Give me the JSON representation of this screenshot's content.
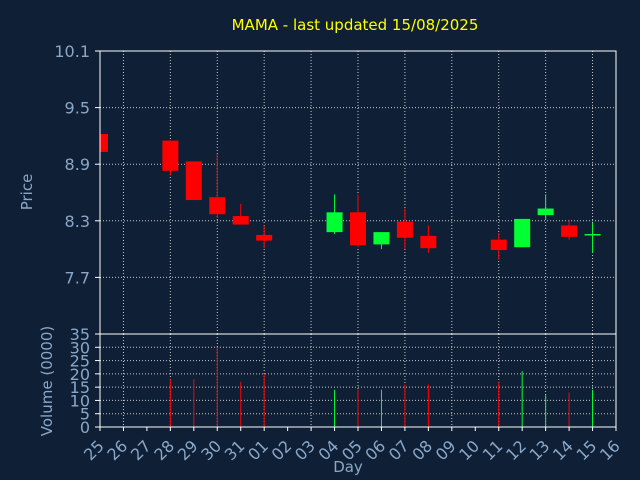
{
  "chart_data": {
    "type": "candlestick",
    "title": "MAMA - last updated 15/08/2025",
    "xlabel": "Day",
    "price_panel": {
      "ylabel": "Price",
      "ylim": [
        7.1,
        10.1
      ],
      "yticks": [
        "10.1",
        "9.5",
        "8.9",
        "8.3",
        "7.7"
      ],
      "grid": true
    },
    "volume_panel": {
      "ylabel": "Volume (0000)",
      "ylim": [
        0,
        35
      ],
      "yticks": [
        "35",
        "30",
        "25",
        "20",
        "15",
        "10",
        "5",
        "0"
      ],
      "grid": true
    },
    "categories": [
      "25",
      "26",
      "27",
      "28",
      "29",
      "30",
      "31",
      "01",
      "02",
      "03",
      "04",
      "05",
      "06",
      "07",
      "08",
      "09",
      "10",
      "11",
      "12",
      "13",
      "14",
      "15",
      "16"
    ],
    "candles": [
      {
        "day": "25",
        "open": 9.22,
        "close": 9.03,
        "high": 9.22,
        "low": 9.03,
        "direction": "down"
      },
      {
        "day": "28",
        "open": 9.15,
        "close": 8.83,
        "high": 9.15,
        "low": 8.78,
        "direction": "down"
      },
      {
        "day": "29",
        "open": 8.93,
        "close": 8.52,
        "high": 8.93,
        "low": 8.52,
        "direction": "down"
      },
      {
        "day": "30",
        "open": 8.55,
        "close": 8.37,
        "high": 9.01,
        "low": 8.33,
        "direction": "down"
      },
      {
        "day": "31",
        "open": 8.35,
        "close": 8.26,
        "high": 8.48,
        "low": 8.26,
        "direction": "down"
      },
      {
        "day": "01",
        "open": 8.15,
        "close": 8.09,
        "high": 8.25,
        "low": 8.01,
        "direction": "down"
      },
      {
        "day": "04",
        "open": 8.18,
        "close": 8.39,
        "high": 8.58,
        "low": 8.16,
        "direction": "up"
      },
      {
        "day": "05",
        "open": 8.39,
        "close": 8.04,
        "high": 8.58,
        "low": 8.02,
        "direction": "down"
      },
      {
        "day": "06",
        "open": 8.05,
        "close": 8.18,
        "high": 8.18,
        "low": 8.0,
        "direction": "up"
      },
      {
        "day": "07",
        "open": 8.29,
        "close": 8.12,
        "high": 8.43,
        "low": 8.0,
        "direction": "down"
      },
      {
        "day": "08",
        "open": 8.14,
        "close": 8.01,
        "high": 8.25,
        "low": 7.96,
        "direction": "down"
      },
      {
        "day": "11",
        "open": 8.1,
        "close": 7.99,
        "high": 8.17,
        "low": 7.89,
        "direction": "down"
      },
      {
        "day": "12",
        "open": 8.02,
        "close": 8.32,
        "high": 8.32,
        "low": 8.02,
        "direction": "up"
      },
      {
        "day": "13",
        "open": 8.36,
        "close": 8.43,
        "high": 8.58,
        "low": 8.31,
        "direction": "up"
      },
      {
        "day": "14",
        "open": 8.25,
        "close": 8.13,
        "high": 8.31,
        "low": 8.1,
        "direction": "down"
      },
      {
        "day": "15",
        "open": 8.16,
        "close": 8.16,
        "high": 8.28,
        "low": 7.96,
        "direction": "up"
      }
    ],
    "volume": [
      {
        "day": "28",
        "value": 18,
        "direction": "down"
      },
      {
        "day": "29",
        "value": 18,
        "direction": "down"
      },
      {
        "day": "30",
        "value": 30,
        "direction": "down"
      },
      {
        "day": "31",
        "value": 17,
        "direction": "down"
      },
      {
        "day": "01",
        "value": 20,
        "direction": "down"
      },
      {
        "day": "04",
        "value": 14,
        "direction": "up"
      },
      {
        "day": "05",
        "value": 14,
        "direction": "down"
      },
      {
        "day": "06",
        "value": 14,
        "direction": "up"
      },
      {
        "day": "07",
        "value": 16,
        "direction": "down"
      },
      {
        "day": "08",
        "value": 16,
        "direction": "down"
      },
      {
        "day": "11",
        "value": 17,
        "direction": "down"
      },
      {
        "day": "12",
        "value": 21,
        "direction": "up"
      },
      {
        "day": "13",
        "value": 12,
        "direction": "up"
      },
      {
        "day": "14",
        "value": 13,
        "direction": "down"
      },
      {
        "day": "15",
        "value": 14,
        "direction": "up"
      }
    ],
    "colors": {
      "background": "#0f2036",
      "axis": "#ffffff",
      "grid": "#c8c8c8",
      "title": "#ffff00",
      "label": "#8aa7c8",
      "up": "#00ff33",
      "down": "#ff0000"
    }
  }
}
